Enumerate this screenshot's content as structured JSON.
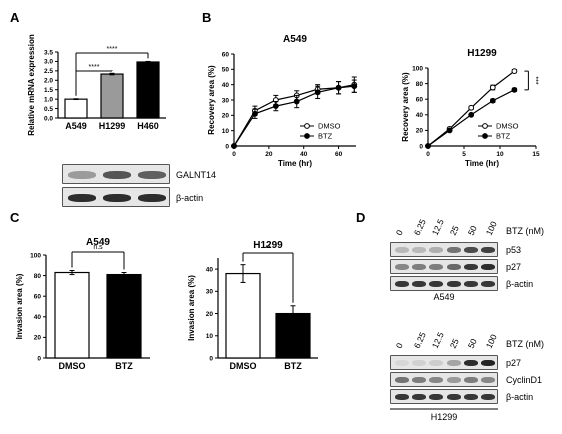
{
  "colors": {
    "ink": "#000000",
    "bar_gray": "#9a9a9a",
    "blot_bg": "#e6e6e6"
  },
  "panels": {
    "A": "A",
    "B": "B",
    "C": "C",
    "D": "D"
  },
  "chart_data": [
    {
      "panel": "A",
      "type": "bar",
      "ylabel": "Relative mRNA expression",
      "categories": [
        "A549",
        "H1299",
        "H460"
      ],
      "values": [
        1.0,
        2.33,
        2.97
      ],
      "errors": [
        0.02,
        0.04,
        0.03
      ],
      "fills": [
        "#ffffff",
        "#9a9a9a",
        "#000000"
      ],
      "ylim": [
        0,
        3.5
      ],
      "yticks": [
        0.0,
        0.5,
        1.0,
        1.5,
        2.0,
        2.5,
        3.0,
        3.5
      ],
      "significance": [
        {
          "from": 0,
          "to": 1,
          "label": "****"
        },
        {
          "from": 0,
          "to": 2,
          "label": "****"
        }
      ]
    },
    {
      "panel": "B",
      "type": "line",
      "title": "A549",
      "xlabel": "Time (hr)",
      "ylabel": "Recovery area (%)",
      "xlim": [
        0,
        70
      ],
      "ylim": [
        0,
        60
      ],
      "xticks": [
        0,
        20,
        40,
        60
      ],
      "yticks": [
        0,
        10,
        20,
        30,
        40,
        50,
        60
      ],
      "x": [
        0,
        12,
        24,
        36,
        48,
        60,
        69
      ],
      "series": [
        {
          "name": "DMSO",
          "marker": "open",
          "values": [
            0,
            23,
            30,
            33,
            37,
            38,
            40
          ],
          "errors": [
            0,
            3,
            3,
            3,
            3,
            4,
            5
          ]
        },
        {
          "name": "BTZ",
          "marker": "filled",
          "values": [
            0,
            21,
            26,
            29,
            35,
            38,
            39
          ],
          "errors": [
            0,
            3,
            3,
            4,
            4,
            4,
            4
          ]
        }
      ],
      "legend": "bottom-right"
    },
    {
      "panel": "B",
      "type": "line",
      "title": "H1299",
      "xlabel": "Time (hr)",
      "ylabel": "Recovery area (%)",
      "xlim": [
        0,
        15
      ],
      "ylim": [
        0,
        100
      ],
      "xticks": [
        0,
        5,
        10,
        15
      ],
      "yticks": [
        0,
        20,
        40,
        60,
        80,
        100
      ],
      "x": [
        0,
        3,
        6,
        9,
        12
      ],
      "series": [
        {
          "name": "DMSO",
          "marker": "open",
          "values": [
            0,
            22,
            49,
            75,
            96
          ],
          "errors": [
            0,
            1,
            2,
            3,
            2
          ]
        },
        {
          "name": "BTZ",
          "marker": "filled",
          "values": [
            0,
            20,
            40,
            58,
            72
          ],
          "errors": [
            0,
            1,
            1,
            2,
            2
          ]
        }
      ],
      "significance": {
        "label": "***"
      },
      "legend": "bottom-right"
    },
    {
      "panel": "C",
      "type": "bar",
      "title": "A549",
      "ylabel": "Invasion area (%)",
      "categories": [
        "DMSO",
        "BTZ"
      ],
      "values": [
        83,
        81
      ],
      "errors": [
        2,
        2
      ],
      "fills": [
        "#ffffff",
        "#000000"
      ],
      "ylim": [
        0,
        100
      ],
      "yticks": [
        0,
        20,
        40,
        60,
        80,
        100
      ],
      "significance": {
        "label": "n.s"
      }
    },
    {
      "panel": "C",
      "type": "bar",
      "title": "H1299",
      "ylabel": "Invasion area (%)",
      "categories": [
        "DMSO",
        "BTZ"
      ],
      "values": [
        38,
        20
      ],
      "errors": [
        4,
        3.5
      ],
      "fills": [
        "#ffffff",
        "#000000"
      ],
      "ylim": [
        0,
        45
      ],
      "yticks": [
        0,
        10,
        20,
        30,
        40
      ],
      "significance": {
        "label": "**"
      }
    }
  ],
  "westerns": {
    "A": {
      "rows": [
        {
          "label": "GALNT14",
          "intensity": [
            0.35,
            0.7,
            0.65
          ]
        },
        {
          "label": "β-actin",
          "intensity": [
            0.9,
            0.9,
            0.9
          ]
        }
      ]
    },
    "D_top": {
      "conc_label": "BTZ (nM)",
      "concentrations": [
        "0",
        "6.25",
        "12.5",
        "25",
        "50",
        "100"
      ],
      "rows": [
        {
          "label": "p53",
          "intensity": [
            0.2,
            0.2,
            0.25,
            0.55,
            0.75,
            0.8
          ]
        },
        {
          "label": "p27",
          "intensity": [
            0.45,
            0.5,
            0.5,
            0.6,
            0.85,
            0.9
          ]
        },
        {
          "label": "β-actin",
          "intensity": [
            0.85,
            0.85,
            0.85,
            0.85,
            0.85,
            0.85
          ]
        }
      ],
      "cell_line": "A549"
    },
    "D_bottom": {
      "conc_label": "BTZ (nM)",
      "concentrations": [
        "0",
        "6.25",
        "12.5",
        "25",
        "50",
        "100"
      ],
      "rows": [
        {
          "label": "p27",
          "intensity": [
            0.05,
            0.08,
            0.1,
            0.3,
            0.9,
            0.95
          ]
        },
        {
          "label": "CyclinD1",
          "intensity": [
            0.55,
            0.5,
            0.45,
            0.35,
            0.5,
            0.45
          ]
        },
        {
          "label": "β-actin",
          "intensity": [
            0.85,
            0.85,
            0.85,
            0.85,
            0.85,
            0.85
          ]
        }
      ],
      "cell_line": "H1299"
    }
  }
}
